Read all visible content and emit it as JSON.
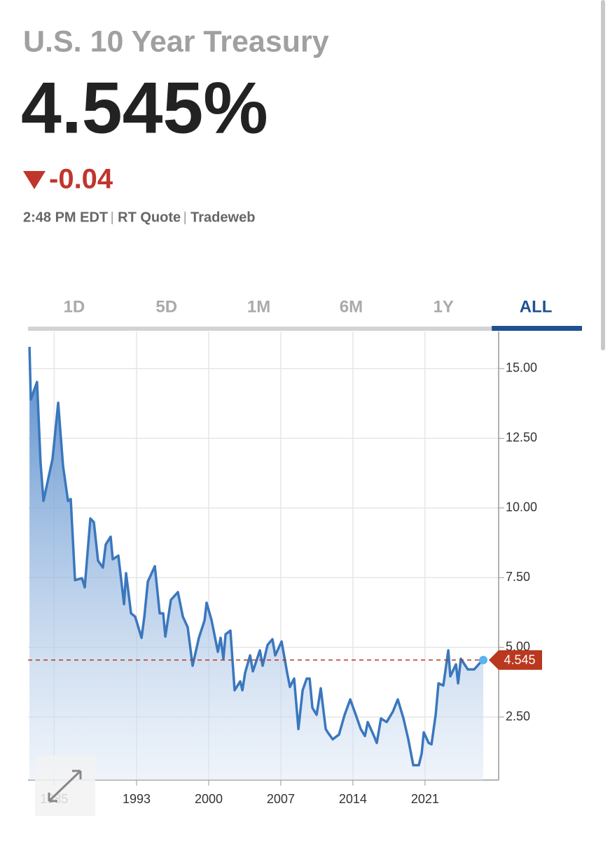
{
  "header": {
    "title": "U.S. 10 Year Treasury",
    "price": "4.545%",
    "change": "-0.04",
    "meta": [
      "2:48 PM EDT",
      "RT Quote",
      "Tradeweb"
    ]
  },
  "tabs": [
    "1D",
    "5D",
    "1M",
    "6M",
    "1Y",
    "ALL"
  ],
  "active_tab": "ALL",
  "chart_data": {
    "type": "area",
    "x": [
      1982.6,
      1982.73,
      1983.34,
      1983.68,
      1983.96,
      1984.84,
      1985.39,
      1985.86,
      1986.34,
      1986.61,
      1987.02,
      1987.7,
      1987.97,
      1988.51,
      1988.85,
      1989.26,
      1989.73,
      1990.01,
      1990.48,
      1990.69,
      1991.23,
      1991.78,
      1991.98,
      1992.46,
      1992.86,
      1993.48,
      1993.75,
      1994.09,
      1994.77,
      1995.24,
      1995.58,
      1995.79,
      1996.33,
      1997.01,
      1997.49,
      1997.96,
      1998.44,
      1999.05,
      1999.6,
      1999.8,
      2000.28,
      2000.89,
      2001.16,
      2001.43,
      2001.64,
      2002.11,
      2002.52,
      2003.06,
      2003.27,
      2003.54,
      2004.02,
      2004.29,
      2004.97,
      2005.24,
      2005.72,
      2006.19,
      2006.46,
      2007.08,
      2007.62,
      2007.89,
      2008.3,
      2008.71,
      2009.12,
      2009.52,
      2009.8,
      2010.07,
      2010.48,
      2010.88,
      2011.36,
      2011.56,
      2012.04,
      2012.65,
      2013.2,
      2013.74,
      2014.28,
      2014.76,
      2015.17,
      2015.44,
      2016.05,
      2016.32,
      2016.73,
      2017.28,
      2017.89,
      2018.36,
      2018.91,
      2019.38,
      2019.86,
      2020.4,
      2020.68,
      2020.88,
      2021.36,
      2021.63,
      2022.04,
      2022.31,
      2022.78,
      2023.26,
      2023.46,
      2024.01,
      2024.21,
      2024.48,
      2025.16,
      2025.78,
      2026.39,
      2026.66
    ],
    "series": [
      {
        "color": "#3a77bd",
        "values": [
          15.78,
          13.89,
          14.52,
          11.63,
          10.25,
          11.76,
          13.77,
          11.51,
          10.25,
          10.32,
          7.41,
          7.48,
          7.15,
          9.62,
          9.49,
          8.11,
          7.86,
          8.69,
          8.97,
          8.16,
          8.29,
          6.55,
          7.66,
          6.22,
          6.1,
          5.34,
          6.1,
          7.36,
          7.91,
          6.22,
          6.22,
          5.39,
          6.7,
          6.98,
          6.1,
          5.72,
          4.34,
          5.34,
          5.97,
          6.6,
          5.97,
          4.84,
          5.34,
          4.59,
          5.47,
          5.6,
          3.46,
          3.78,
          3.46,
          4.09,
          4.71,
          4.14,
          4.89,
          4.34,
          5.09,
          5.29,
          4.71,
          5.21,
          4.09,
          3.58,
          3.88,
          2.07,
          3.46,
          3.88,
          3.88,
          2.83,
          2.58,
          3.53,
          2.07,
          1.95,
          1.7,
          1.87,
          2.58,
          3.13,
          2.58,
          2.07,
          1.82,
          2.32,
          1.82,
          1.57,
          2.45,
          2.32,
          2.7,
          3.13,
          2.45,
          1.7,
          0.77,
          0.77,
          1.19,
          1.95,
          1.57,
          1.52,
          2.58,
          3.71,
          3.63,
          4.89,
          3.96,
          4.39,
          3.71,
          4.59,
          4.21,
          4.21,
          4.46,
          4.545
        ]
      }
    ],
    "xlim": [
      1982.46,
      2028.15
    ],
    "xticks": [
      1985,
      1993,
      2000,
      2007,
      2014,
      2021
    ],
    "ylim": [
      0.24,
      16.33
    ],
    "yticks": [
      {
        "value": 2.5,
        "label": "2.50"
      },
      {
        "value": 5,
        "label": "5.00"
      },
      {
        "value": 7.5,
        "label": "7.50"
      },
      {
        "value": 10,
        "label": "10.00"
      },
      {
        "value": 12.5,
        "label": "12.50"
      },
      {
        "value": 15,
        "label": "15.00"
      }
    ],
    "grid": true,
    "marker_color": "#b9381f"
  }
}
